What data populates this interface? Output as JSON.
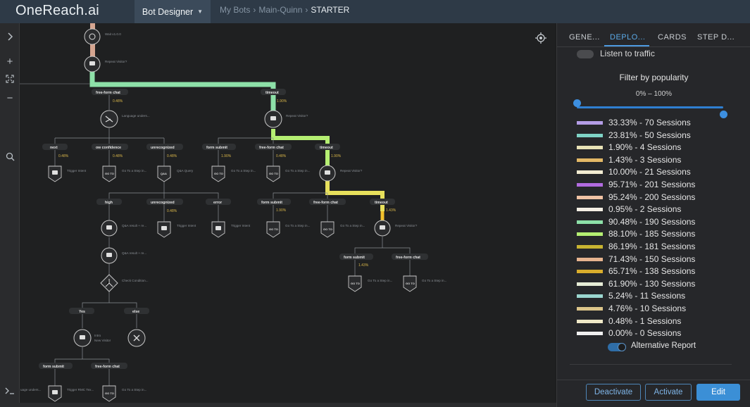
{
  "header": {
    "logo": "OneReach.ai",
    "active_tab": "Bot Designer",
    "breadcrumb": {
      "items": [
        "My Bots",
        "Main-Quinn"
      ],
      "separator": "›",
      "current": "STARTER"
    }
  },
  "toolbar": {
    "expand_icon": "chevron-right-icon",
    "zoom_in": "+",
    "fit_icon": "fit-to-screen-icon",
    "zoom_out": "−",
    "search_icon": "search-icon",
    "console_icon": "terminal-icon"
  },
  "panel": {
    "tabs": [
      "GENE...",
      "DEPLO...",
      "CARDS",
      "STEP D..."
    ],
    "active_tab_index": 1,
    "listen_label": "Listen to traffic",
    "filter_title": "Filter by popularity",
    "range_text": "0% – 100%",
    "range_min_percent": 0,
    "range_max_percent": 100,
    "legend": [
      {
        "label": "33.33% - 70 Sessions",
        "color": "#b49de6"
      },
      {
        "label": "23.81% - 50 Sessions",
        "color": "#7fd3c6"
      },
      {
        "label": "1.90% - 4 Sessions",
        "color": "#e8e2b6"
      },
      {
        "label": "1.43% - 3 Sessions",
        "color": "#e3b866"
      },
      {
        "label": "10.00% - 21 Sessions",
        "color": "#f3ecd2"
      },
      {
        "label": "95.71% - 201 Sessions",
        "color": "#b26be0"
      },
      {
        "label": "95.24% - 200 Sessions",
        "color": "#f0c2a4"
      },
      {
        "label": "0.95% - 2 Sessions",
        "color": "#f5efe4"
      },
      {
        "label": "90.48% - 190 Sessions",
        "color": "#8de0a8"
      },
      {
        "label": "88.10% - 185 Sessions",
        "color": "#b5ef72"
      },
      {
        "label": "86.19% - 181 Sessions",
        "color": "#c8b431"
      },
      {
        "label": "71.43% - 150 Sessions",
        "color": "#e7b48f"
      },
      {
        "label": "65.71% - 138 Sessions",
        "color": "#d9ad2c"
      },
      {
        "label": "61.90% - 130 Sessions",
        "color": "#e6ecd6"
      },
      {
        "label": "5.24% - 11 Sessions",
        "color": "#9bd6cf"
      },
      {
        "label": "4.76% - 10 Sessions",
        "color": "#dcc58a"
      },
      {
        "label": "0.48% - 1 Sessions",
        "color": "#efe9c8"
      },
      {
        "label": "0.00% - 0 Sessions",
        "color": "#f0f0f0"
      }
    ],
    "alt_report_label": "Alternative Report",
    "alt_report_on": true,
    "buttons": {
      "deactivate": "Deactivate",
      "activate": "Activate",
      "edit": "Edit"
    }
  },
  "flow": {
    "steps": {
      "wait": "Wait v1.0.0",
      "repeat_visitor_top": "Repeat Visitor?",
      "language_understanding": "Language unders...",
      "repeat_visitor_2": "Repeat Visitor?",
      "trigger_intent_1": "Trigger Intent",
      "goto_step_1": "Go To a Step in...",
      "qa_query": "Q&A Query",
      "goto_step_2": "Go To a Step in...",
      "goto_step_3": "Go To a Step in...",
      "repeat_visitor_3": "Repeat Visitor?",
      "qa_result_1": "Q&A result + re...",
      "trigger_intent_2": "Trigger Intent",
      "trigger_intent_3": "Trigger Intent",
      "goto_step_4": "Go To a Step in...",
      "goto_step_5": "Go To a Step in...",
      "repeat_visitor_4": "Repeat Visitor?",
      "qa_result_2": "Q&A result + re...",
      "check_condition": "Check Condition...",
      "goto_step_6": "Go To a Step in...",
      "goto_step_7": "Go To a Step in...",
      "intro": "Intro",
      "new_visitor": "New Visitor",
      "lang_under_bottom": "uage unders...",
      "trigger_rmc": "Trigger RMC Tex...",
      "goto_step_8": "Go To a Step in..."
    },
    "branches": {
      "free_form_chat": "free-form chat",
      "timeout": "timeout",
      "next": "next",
      "low_confidence": "ow confidence",
      "unrecognized": "unrecognized",
      "form_submit": "form submit",
      "high": "high",
      "error": "error",
      "yes": "Yes",
      "else": "else"
    },
    "percents": {
      "p048": "0.48%",
      "p190": "1.90%",
      "p143": "1.43%"
    },
    "goto_badge": "GO TO",
    "qa_badge": "Q&A"
  }
}
